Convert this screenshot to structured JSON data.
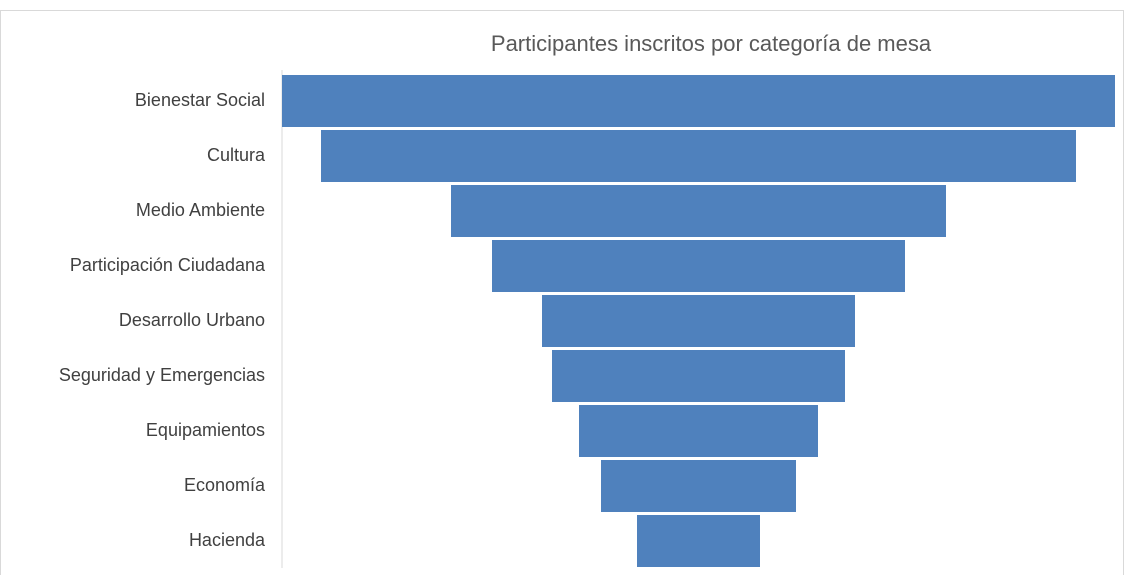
{
  "chart_data": {
    "type": "funnel",
    "title": "Participantes inscritos por categoría de mesa",
    "categories": [
      "Bienestar Social",
      "Cultura",
      "Medio Ambiente",
      "Participación Ciudadana",
      "Desarrollo Urbano",
      "Seguridad y Emergencias",
      "Equipamientos",
      "Economía",
      "Hacienda"
    ],
    "values": [
      833,
      755,
      495,
      413,
      313,
      293,
      239,
      195,
      123
    ],
    "color": "#4f81bd"
  }
}
